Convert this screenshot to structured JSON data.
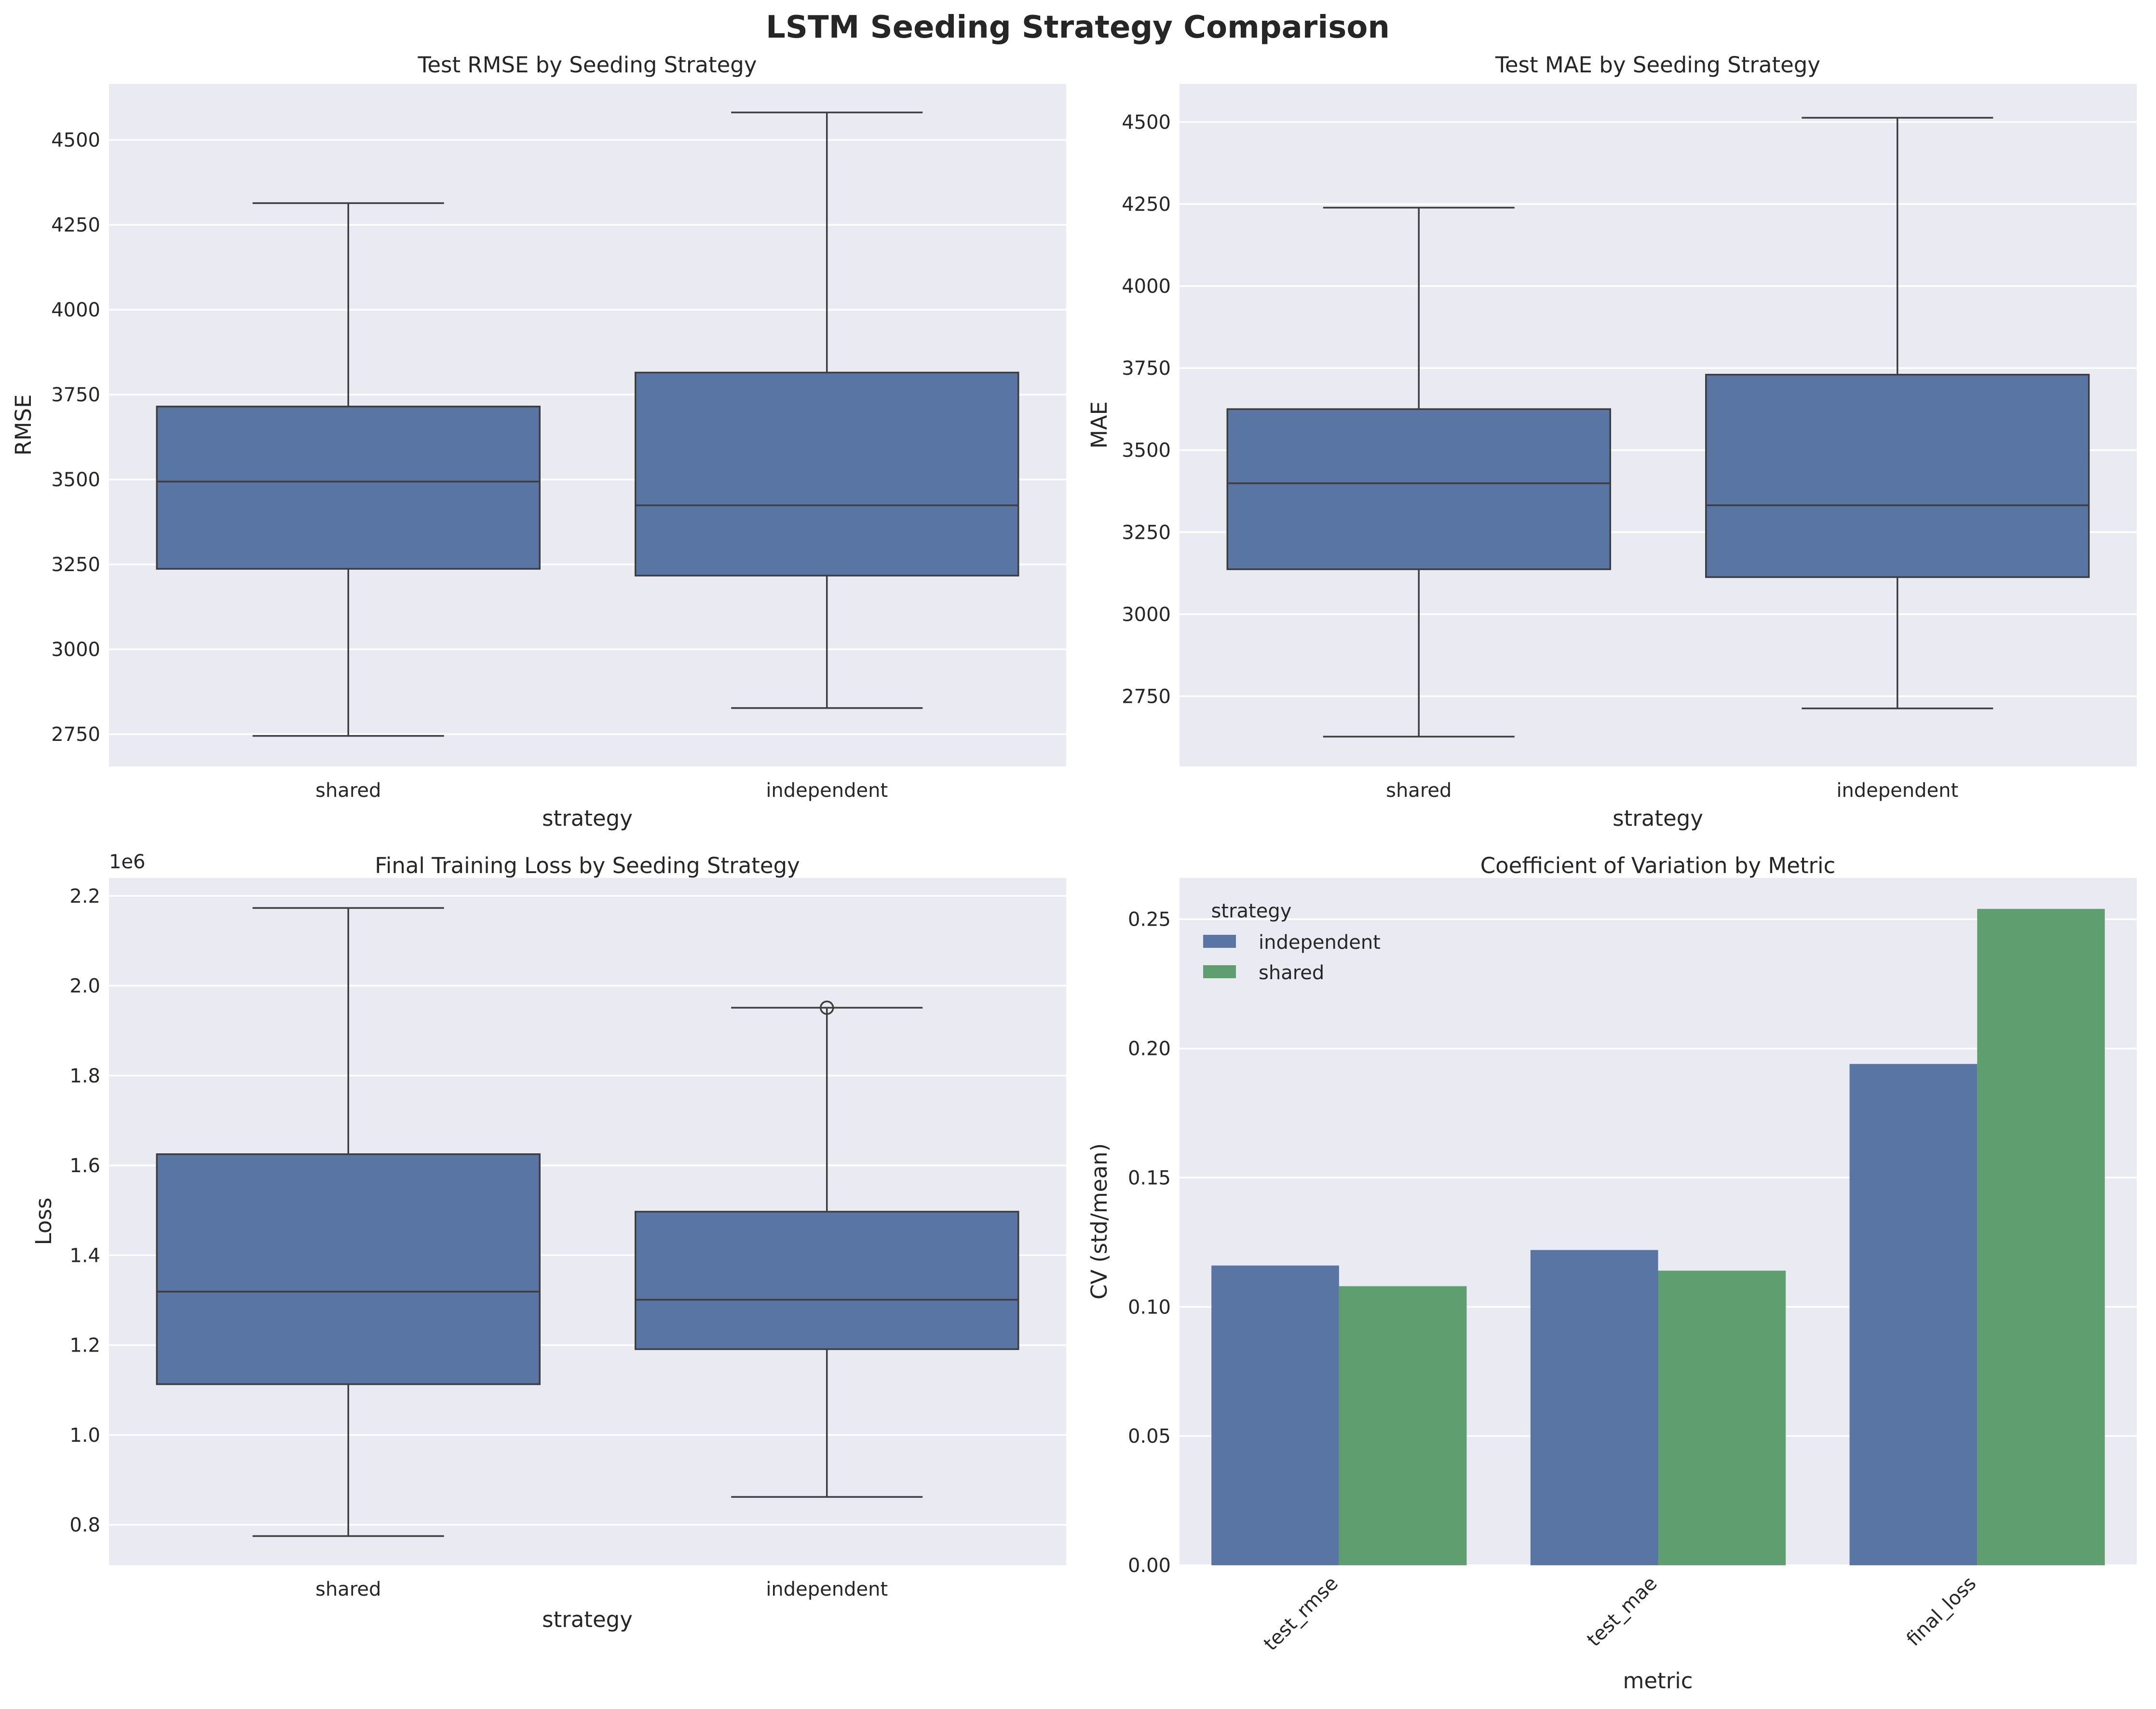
{
  "figure": {
    "title": "LSTM Seeding Strategy Comparison"
  },
  "colors": {
    "independent": "#5975a4",
    "shared": "#5f9e6e",
    "box_fill": "#5975a4",
    "box_line": "#3d3d3d",
    "panel_bg": "#eaeaf2"
  },
  "chart_data": [
    {
      "type": "box",
      "title": "Test RMSE by Seeding Strategy",
      "xlabel": "strategy",
      "ylabel": "RMSE",
      "ylim": [
        2655,
        4665
      ],
      "yticks": [
        2750,
        3000,
        3250,
        3500,
        3750,
        4000,
        4250,
        4500
      ],
      "ytick_labels": [
        "2750",
        "3000",
        "3250",
        "3500",
        "3750",
        "4000",
        "4250",
        "4500"
      ],
      "categories": [
        "shared",
        "independent"
      ],
      "boxes": [
        {
          "category": "shared",
          "whisker_low": 2745,
          "q1": 3237,
          "median": 3494,
          "q3": 3715,
          "whisker_high": 4314,
          "outliers": []
        },
        {
          "category": "independent",
          "whisker_low": 2827,
          "q1": 3217,
          "median": 3424,
          "q3": 3815,
          "whisker_high": 4581,
          "outliers": []
        }
      ]
    },
    {
      "type": "box",
      "title": "Test MAE by Seeding Strategy",
      "xlabel": "strategy",
      "ylabel": "MAE",
      "ylim": [
        2536,
        4616
      ],
      "yticks": [
        2750,
        3000,
        3250,
        3500,
        3750,
        4000,
        4250,
        4500
      ],
      "ytick_labels": [
        "2750",
        "3000",
        "3250",
        "3500",
        "3750",
        "4000",
        "4250",
        "4500"
      ],
      "categories": [
        "shared",
        "independent"
      ],
      "boxes": [
        {
          "category": "shared",
          "whisker_low": 2627,
          "q1": 3137,
          "median": 3399,
          "q3": 3625,
          "whisker_high": 4239,
          "outliers": []
        },
        {
          "category": "independent",
          "whisker_low": 2713,
          "q1": 3113,
          "median": 3332,
          "q3": 3730,
          "whisker_high": 4513,
          "outliers": []
        }
      ]
    },
    {
      "type": "box",
      "title": "Final Training Loss by Seeding Strategy",
      "xlabel": "strategy",
      "ylabel": "Loss",
      "offset_label": "1e6",
      "ylim": [
        0.71,
        2.24
      ],
      "yticks": [
        0.8,
        1.0,
        1.2,
        1.4,
        1.6,
        1.8,
        2.0,
        2.2
      ],
      "ytick_labels": [
        "0.8",
        "1.0",
        "1.2",
        "1.4",
        "1.6",
        "1.8",
        "2.0",
        "2.2"
      ],
      "categories": [
        "shared",
        "independent"
      ],
      "boxes": [
        {
          "category": "shared",
          "whisker_low": 0.775,
          "q1": 1.113,
          "median": 1.319,
          "q3": 1.625,
          "whisker_high": 2.173,
          "outliers": []
        },
        {
          "category": "independent",
          "whisker_low": 0.862,
          "q1": 1.191,
          "median": 1.301,
          "q3": 1.497,
          "whisker_high": 1.951,
          "outliers": [
            1.951
          ]
        }
      ]
    },
    {
      "type": "bar",
      "title": "Coefficient of Variation by Metric",
      "xlabel": "metric",
      "ylabel": "CV (std/mean)",
      "ylim": [
        0,
        0.266
      ],
      "yticks": [
        0.0,
        0.05,
        0.1,
        0.15,
        0.2,
        0.25
      ],
      "ytick_labels": [
        "0.00",
        "0.05",
        "0.10",
        "0.15",
        "0.20",
        "0.25"
      ],
      "categories": [
        "test_rmse",
        "test_mae",
        "final_loss"
      ],
      "legend_title": "strategy",
      "legend_position": "upper-left",
      "series": [
        {
          "name": "independent",
          "values": [
            0.116,
            0.122,
            0.194
          ]
        },
        {
          "name": "shared",
          "values": [
            0.108,
            0.114,
            0.254
          ]
        }
      ]
    }
  ]
}
